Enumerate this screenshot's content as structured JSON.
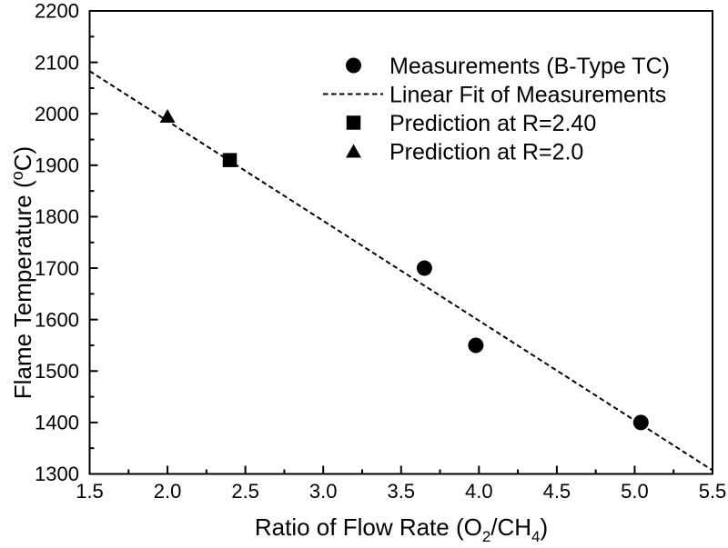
{
  "figure": {
    "background": "#ffffff",
    "foreground": "#000000"
  },
  "chart_data": {
    "type": "scatter",
    "title": "",
    "xlabel": "Ratio of Flow Rate (O2/CH4)",
    "xlabel_parts": [
      {
        "text": "Ratio of Flow Rate (O",
        "script": "normal"
      },
      {
        "text": "2",
        "script": "sub"
      },
      {
        "text": "/CH",
        "script": "normal"
      },
      {
        "text": "4",
        "script": "sub"
      },
      {
        "text": ")",
        "script": "normal"
      }
    ],
    "ylabel": "Flame Temperature (oC)",
    "ylabel_parts": [
      {
        "text": "Flame Temperature (",
        "script": "normal"
      },
      {
        "text": "o",
        "script": "sup"
      },
      {
        "text": "C)",
        "script": "normal"
      }
    ],
    "xlim": [
      1.5,
      5.5
    ],
    "ylim": [
      1300,
      2200
    ],
    "x_major_ticks": [
      1.5,
      2.0,
      2.5,
      3.0,
      3.5,
      4.0,
      4.5,
      5.0,
      5.5
    ],
    "x_tick_labels": [
      "1.5",
      "2.0",
      "2.5",
      "3.0",
      "3.5",
      "4.0",
      "4.5",
      "5.0",
      "5.5"
    ],
    "x_minor_step": 0.25,
    "y_major_ticks": [
      1300,
      1400,
      1500,
      1600,
      1700,
      1800,
      1900,
      2000,
      2100,
      2200
    ],
    "y_tick_labels": [
      "1300",
      "1400",
      "1500",
      "1600",
      "1700",
      "1800",
      "1900",
      "2000",
      "2100",
      "2200"
    ],
    "y_minor_step": 50,
    "grid": false,
    "legend_position": "top-right-inside",
    "axis_color": "#000000",
    "series": [
      {
        "key": "measurements",
        "name": "Measurements (B-Type TC)",
        "marker": "circle",
        "line": "none",
        "color": "#000000",
        "points": [
          [
            3.65,
            1700
          ],
          [
            3.98,
            1550
          ],
          [
            5.04,
            1400
          ]
        ]
      },
      {
        "key": "linear-fit",
        "name": "Linear Fit of Measurements",
        "marker": "none",
        "line": "dashed",
        "color": "#000000",
        "points": [
          [
            1.5,
            2083
          ],
          [
            5.5,
            1307
          ]
        ]
      },
      {
        "key": "prediction-r240",
        "name": "Prediction at R=2.40",
        "marker": "square",
        "line": "none",
        "color": "#000000",
        "points": [
          [
            2.4,
            1910
          ]
        ]
      },
      {
        "key": "prediction-r20",
        "name": "Prediction at R=2.0",
        "marker": "triangle",
        "line": "none",
        "color": "#000000",
        "points": [
          [
            2.0,
            1995
          ]
        ]
      }
    ]
  }
}
